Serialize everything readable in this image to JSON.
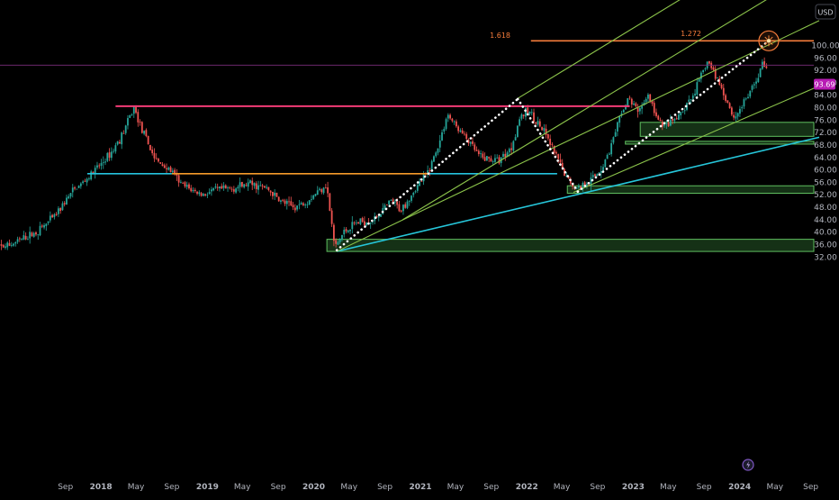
{
  "header": {
    "currency_label": "USD"
  },
  "price_tag": {
    "value": "93.69",
    "color": "#b71cb4"
  },
  "fib": {
    "label_a": "1.618",
    "label_b": "1.272",
    "color": "#f57c3b"
  },
  "badge_icon": "lightning-icon",
  "chart_data": {
    "type": "candlestick",
    "title": "",
    "ylabel": "USD",
    "ylim": [
      32,
      104
    ],
    "xlim": [
      "2017-01-01",
      "2024-09-30"
    ],
    "y_ticks": [
      "100.00",
      "96.00",
      "92.00",
      "88.00",
      "84.00",
      "80.00",
      "76.00",
      "72.00",
      "68.00",
      "64.00",
      "60.00",
      "56.00",
      "52.00",
      "48.00",
      "44.00",
      "40.00",
      "36.00",
      "32.00"
    ],
    "x_ticks": [
      {
        "label": "Sep",
        "date": "2017-09-01"
      },
      {
        "label": "2018",
        "date": "2018-01-01"
      },
      {
        "label": "May",
        "date": "2018-05-01"
      },
      {
        "label": "Sep",
        "date": "2018-09-01"
      },
      {
        "label": "2019",
        "date": "2019-01-01"
      },
      {
        "label": "May",
        "date": "2019-05-01"
      },
      {
        "label": "Sep",
        "date": "2019-09-01"
      },
      {
        "label": "2020",
        "date": "2020-01-01"
      },
      {
        "label": "May",
        "date": "2020-05-01"
      },
      {
        "label": "Sep",
        "date": "2020-09-01"
      },
      {
        "label": "2021",
        "date": "2021-01-01"
      },
      {
        "label": "May",
        "date": "2021-05-01"
      },
      {
        "label": "Sep",
        "date": "2021-09-01"
      },
      {
        "label": "2022",
        "date": "2022-01-01"
      },
      {
        "label": "May",
        "date": "2022-05-01"
      },
      {
        "label": "Sep",
        "date": "2022-09-01"
      },
      {
        "label": "2023",
        "date": "2023-01-01"
      },
      {
        "label": "May",
        "date": "2023-05-01"
      },
      {
        "label": "Sep",
        "date": "2023-09-01"
      },
      {
        "label": "2024",
        "date": "2024-01-01"
      },
      {
        "label": "May",
        "date": "2024-05-01"
      },
      {
        "label": "Sep",
        "date": "2024-09-01"
      }
    ],
    "price_path": [
      [
        "2016-12-20",
        34.5
      ],
      [
        "2017-03-01",
        35.8
      ],
      [
        "2017-06-01",
        40
      ],
      [
        "2017-08-01",
        45
      ],
      [
        "2017-10-01",
        53
      ],
      [
        "2017-11-20",
        57
      ],
      [
        "2018-01-10",
        62
      ],
      [
        "2018-02-15",
        66
      ],
      [
        "2018-03-20",
        71
      ],
      [
        "2018-05-01",
        80
      ],
      [
        "2018-06-01",
        72
      ],
      [
        "2018-07-15",
        63
      ],
      [
        "2018-09-01",
        60
      ],
      [
        "2018-10-15",
        55
      ],
      [
        "2018-12-20",
        52
      ],
      [
        "2019-02-01",
        53.5
      ],
      [
        "2019-04-01",
        54
      ],
      [
        "2019-06-01",
        55.5
      ],
      [
        "2019-08-01",
        54
      ],
      [
        "2019-09-15",
        50
      ],
      [
        "2019-11-01",
        48
      ],
      [
        "2019-12-15",
        50
      ],
      [
        "2020-02-01",
        54
      ],
      [
        "2020-02-20",
        55.5
      ],
      [
        "2020-03-20",
        35
      ],
      [
        "2020-04-20",
        40
      ],
      [
        "2020-06-01",
        43
      ],
      [
        "2020-08-01",
        44
      ],
      [
        "2020-10-01",
        50
      ],
      [
        "2020-11-01",
        47
      ],
      [
        "2020-12-15",
        53
      ],
      [
        "2021-02-01",
        59
      ],
      [
        "2021-03-15",
        69
      ],
      [
        "2021-04-10",
        78
      ],
      [
        "2021-05-10",
        74
      ],
      [
        "2021-06-15",
        70
      ],
      [
        "2021-08-01",
        64
      ],
      [
        "2021-10-01",
        63
      ],
      [
        "2021-11-15",
        67
      ],
      [
        "2021-12-15",
        77
      ],
      [
        "2022-01-15",
        79
      ],
      [
        "2022-02-15",
        75
      ],
      [
        "2022-03-15",
        71
      ],
      [
        "2022-04-15",
        65
      ],
      [
        "2022-05-20",
        58
      ],
      [
        "2022-06-25",
        54
      ],
      [
        "2022-07-15",
        55
      ],
      [
        "2022-08-20",
        57
      ],
      [
        "2022-09-25",
        61
      ],
      [
        "2022-10-25",
        68
      ],
      [
        "2022-11-25",
        77
      ],
      [
        "2022-12-20",
        83
      ],
      [
        "2023-01-25",
        79
      ],
      [
        "2023-03-01",
        84
      ],
      [
        "2023-04-01",
        76
      ],
      [
        "2023-05-01",
        74
      ],
      [
        "2023-06-15",
        77
      ],
      [
        "2023-08-01",
        84
      ],
      [
        "2023-09-20",
        95
      ],
      [
        "2023-10-25",
        89
      ],
      [
        "2023-12-01",
        81
      ],
      [
        "2023-12-20",
        76.5
      ],
      [
        "2024-01-25",
        82
      ],
      [
        "2024-03-01",
        88
      ],
      [
        "2024-03-28",
        94.5
      ],
      [
        "2024-04-04",
        93.7
      ]
    ],
    "horizontal_levels": [
      {
        "name": "resistance",
        "color": "#f23b76",
        "y": 80.5,
        "x_from": "2018-02-20",
        "x_to": "2022-12-20"
      },
      {
        "name": "orange-support",
        "color": "#f59a2a",
        "y": 58.8,
        "x_from": "2018-09-01",
        "x_to": "2021-02-01"
      },
      {
        "name": "cyan-support",
        "color": "#25c3dd",
        "y": 58.8,
        "x_from": "2017-11-15",
        "x_to": "2018-09-01"
      },
      {
        "name": "cyan-support-b",
        "color": "#25c3dd",
        "y": 58.8,
        "x_from": "2021-02-01",
        "x_to": "2022-04-15"
      },
      {
        "name": "fib-1618",
        "color": "#f57c3b",
        "y": 101.5,
        "x_from": "2022-01-15",
        "x_to": "2024-09-30"
      },
      {
        "name": "price-line",
        "color": "#7a2d7b",
        "y": 93.69,
        "x_from": "2017-01-01",
        "x_to": "2024-09-30"
      }
    ],
    "zones": [
      {
        "y1": 33.8,
        "y2": 37.7,
        "x_from": "2020-02-15",
        "x_to": "2024-09-30"
      },
      {
        "y1": 52.5,
        "y2": 54.9,
        "x_from": "2022-05-20",
        "x_to": "2024-09-30"
      },
      {
        "y1": 68.3,
        "y2": 69.2,
        "x_from": "2022-12-05",
        "x_to": "2024-09-30"
      },
      {
        "y1": 70.8,
        "y2": 75.3,
        "x_from": "2023-01-25",
        "x_to": "2024-09-30"
      }
    ],
    "trend_lines": [
      {
        "color": "#26c6da",
        "p1": [
          "2020-03-20",
          33.8
        ],
        "p2": [
          "2024-09-30",
          70.5
        ]
      },
      {
        "color": "#8bc34a",
        "p1": [
          "2020-03-20",
          33.8
        ],
        "p2": [
          "2024-09-30",
          108
        ]
      },
      {
        "color": "#8bc34a",
        "p1": [
          "2021-12-01",
          83
        ],
        "p2": [
          "2024-09-30",
          142
        ]
      },
      {
        "color": "#8bc34a",
        "p1": [
          "2022-06-10",
          52.8
        ],
        "p2": [
          "2024-09-30",
          87
        ]
      },
      {
        "color": "#8bc34a",
        "p1": [
          "2020-11-01",
          44
        ],
        "p2": [
          "2024-09-30",
          125
        ]
      }
    ],
    "dotted_lines": [
      {
        "p1": [
          "2020-03-20",
          34.2
        ],
        "p2": [
          "2021-12-01",
          82.8
        ]
      },
      {
        "p1": [
          "2021-12-01",
          82.8
        ],
        "p2": [
          "2022-06-25",
          53.0
        ]
      },
      {
        "p1": [
          "2022-06-25",
          53.0
        ],
        "p2": [
          "2024-04-10",
          101.5
        ]
      }
    ],
    "target_point": [
      "2024-04-10",
      101.5
    ]
  }
}
